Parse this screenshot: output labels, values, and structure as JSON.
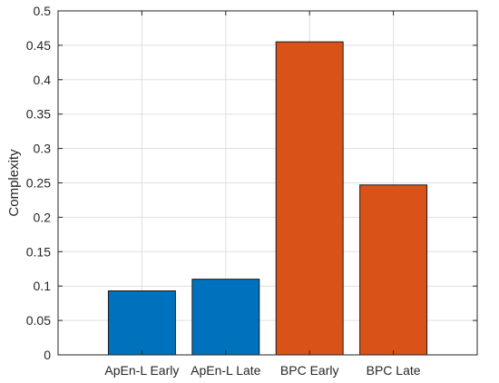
{
  "chart_data": {
    "type": "bar",
    "title": "",
    "xlabel": "",
    "ylabel": "Complexity",
    "categories": [
      "ApEn-L Early",
      "ApEn-L Late",
      "BPC Early",
      "BPC Late"
    ],
    "values": [
      0.093,
      0.11,
      0.455,
      0.247
    ],
    "colors": [
      "#0072BD",
      "#0072BD",
      "#D95319",
      "#D95319"
    ],
    "ylim": [
      0,
      0.5
    ],
    "yticks": [
      "0",
      "0.05",
      "0.1",
      "0.15",
      "0.2",
      "0.25",
      "0.3",
      "0.35",
      "0.4",
      "0.45",
      "0.5"
    ],
    "grid": true,
    "legend": "none"
  }
}
